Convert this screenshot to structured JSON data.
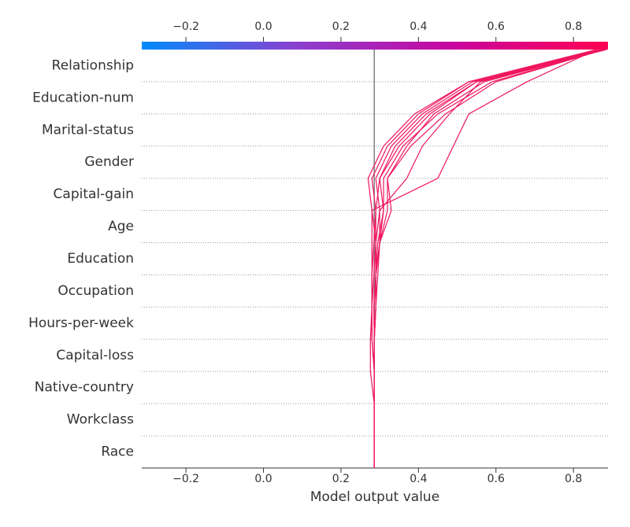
{
  "chart_data": {
    "type": "decision",
    "xlabel": "Model output value",
    "categories": [
      "Relationship",
      "Education-num",
      "Marital-status",
      "Gender",
      "Capital-gain",
      "Age",
      "Education",
      "Occupation",
      "Hours-per-week",
      "Capital-loss",
      "Native-country",
      "Workclass",
      "Race"
    ],
    "base_value": 0.286,
    "color": "#f0155c",
    "base_color": "#808080",
    "colorbar_colors": [
      "#008bfb",
      "#8b3fd0",
      "#c8069f",
      "#ff0052"
    ],
    "xlim": [
      -0.314,
      0.889
    ],
    "xticks": [
      {
        "value": -0.2,
        "label": "−0.2"
      },
      {
        "value": 0,
        "label": "0.0"
      },
      0.2,
      0.4,
      0.6,
      0.8
    ],
    "grid": true,
    "series": [
      {
        "values": [
          0.87,
          0.53,
          0.39,
          0.31,
          0.27,
          0.28,
          0.28,
          0.28,
          0.28,
          0.276,
          0.276,
          0.286,
          0.286
        ]
      },
      {
        "values": [
          0.88,
          0.54,
          0.41,
          0.33,
          0.29,
          0.3,
          0.29,
          0.285,
          0.28,
          0.28,
          0.286,
          0.286,
          0.286
        ]
      },
      {
        "values": [
          0.885,
          0.55,
          0.43,
          0.35,
          0.3,
          0.29,
          0.29,
          0.29,
          0.285,
          0.286,
          0.286,
          0.286,
          0.286
        ]
      },
      {
        "values": [
          0.875,
          0.59,
          0.45,
          0.36,
          0.31,
          0.31,
          0.3,
          0.29,
          0.29,
          0.286,
          0.286,
          0.286,
          0.286
        ]
      },
      {
        "values": [
          0.88,
          0.6,
          0.47,
          0.38,
          0.32,
          0.32,
          0.3,
          0.295,
          0.29,
          0.286,
          0.286,
          0.286,
          0.286
        ]
      },
      {
        "values": [
          0.86,
          0.68,
          0.53,
          0.49,
          0.45,
          0.28,
          0.29,
          0.29,
          0.29,
          0.286,
          0.286,
          0.286,
          0.286
        ]
      },
      {
        "values": [
          0.885,
          0.56,
          0.48,
          0.41,
          0.37,
          0.3,
          0.3,
          0.29,
          0.285,
          0.286,
          0.286,
          0.286,
          0.286
        ]
      },
      {
        "values": [
          0.87,
          0.55,
          0.42,
          0.34,
          0.3,
          0.31,
          0.295,
          0.29,
          0.29,
          0.286,
          0.286,
          0.286,
          0.286
        ]
      },
      {
        "values": [
          0.88,
          0.57,
          0.44,
          0.37,
          0.32,
          0.33,
          0.3,
          0.29,
          0.29,
          0.286,
          0.286,
          0.286,
          0.286
        ]
      },
      {
        "values": [
          0.86,
          0.53,
          0.4,
          0.32,
          0.28,
          0.29,
          0.285,
          0.28,
          0.28,
          0.28,
          0.286,
          0.286,
          0.286
        ]
      }
    ]
  }
}
